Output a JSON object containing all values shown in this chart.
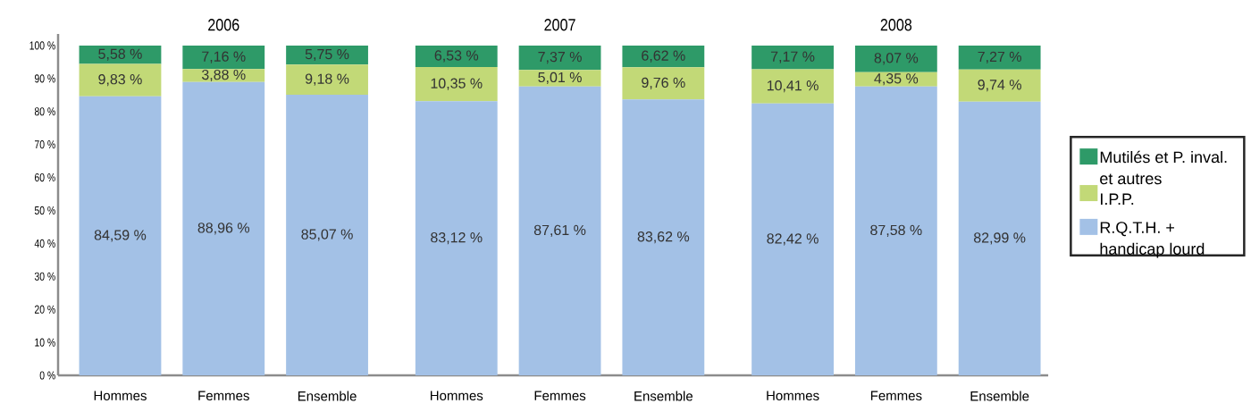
{
  "chart_data": {
    "type": "bar",
    "stacked": true,
    "legend": "right",
    "categories": [
      "Hommes",
      "Femmes",
      "Ensemble",
      "Hommes",
      "Femmes",
      "Ensemble",
      "Hommes",
      "Femmes",
      "Ensemble"
    ],
    "annotations": [
      "2006",
      "2007",
      "2008"
    ],
    "ylim": [
      0,
      103.5
    ],
    "yticks": [
      {
        "value": 0,
        "label": "0 %"
      },
      {
        "value": 10,
        "label": "10 %"
      },
      {
        "value": 20,
        "label": "20 %"
      },
      {
        "value": 30,
        "label": "30 %"
      },
      {
        "value": 40,
        "label": "40 %"
      },
      {
        "value": 50,
        "label": "50 %"
      },
      {
        "value": 60,
        "label": "60 %"
      },
      {
        "value": 70,
        "label": "70 %"
      },
      {
        "value": 80,
        "label": "80 %"
      },
      {
        "value": 90,
        "label": "90 %"
      },
      {
        "value": 100,
        "label": "100 %"
      }
    ],
    "series": [
      {
        "name": "R.Q.T.H. + handicap lourd",
        "color": "#a3c1e6",
        "values": [
          84.59,
          88.96,
          85.07,
          83.12,
          87.61,
          83.62,
          82.42,
          87.58,
          82.99
        ],
        "value_labels": [
          "84,59 %",
          "88,96 %",
          "85,07 %",
          "83,12 %",
          "87,61 %",
          "83,62 %",
          "82,42 %",
          "87,58 %",
          "82,99 %"
        ]
      },
      {
        "name": "I.P.P.",
        "color": "#c2d977",
        "values": [
          9.83,
          3.88,
          9.18,
          10.35,
          5.01,
          9.76,
          10.41,
          4.35,
          9.74
        ],
        "value_labels": [
          "9,83 %",
          "3,88 %",
          "9,18 %",
          "10,35 %",
          "5,01 %",
          "9,76 %",
          "10,41 %",
          "4,35 %",
          "9,74 %"
        ]
      },
      {
        "name": "Mutilés et P. inval. et autres",
        "color": "#2e9a68",
        "values": [
          5.58,
          7.16,
          5.75,
          6.53,
          7.37,
          6.62,
          7.17,
          8.07,
          7.27
        ],
        "value_labels": [
          "5,58 %",
          "7,16 %",
          "5,75 %",
          "6,53 %",
          "7,37 %",
          "6,62 %",
          "7,17 %",
          "8,07 %",
          "7,27 %"
        ]
      }
    ]
  }
}
